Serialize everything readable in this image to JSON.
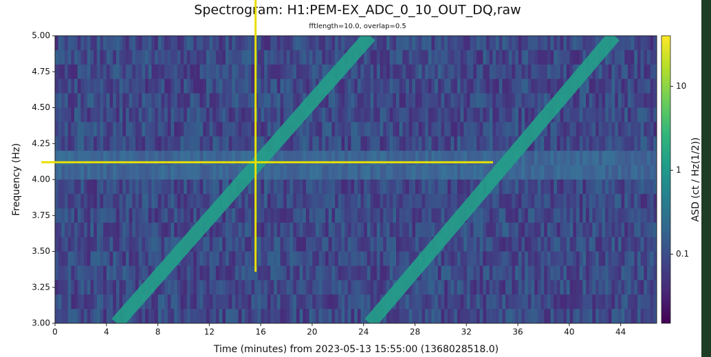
{
  "chart_data": {
    "type": "spectrogram",
    "title": "Spectrogram: H1:PEM-EX_ADC_0_10_OUT_DQ,raw",
    "subtitle": "fftlength=10.0, overlap=0.5",
    "xlabel": "Time (minutes) from 2023-05-13 15:55:00 (1368028518.0)",
    "ylabel": "Frequency (Hz)",
    "colorbar_label": "ASD (ct / Hz(1/2))",
    "xlim": [
      0,
      46.8
    ],
    "ylim": [
      3.0,
      5.0
    ],
    "xticks": [
      0,
      4,
      8,
      12,
      16,
      20,
      24,
      28,
      32,
      36,
      40,
      44
    ],
    "yticks": [
      {
        "value": 3.0,
        "label": "3.00"
      },
      {
        "value": 3.25,
        "label": "3.25"
      },
      {
        "value": 3.5,
        "label": "3.50"
      },
      {
        "value": 3.75,
        "label": "3.75"
      },
      {
        "value": 4.0,
        "label": "4.00"
      },
      {
        "value": 4.25,
        "label": "4.25"
      },
      {
        "value": 4.5,
        "label": "4.50"
      },
      {
        "value": 4.75,
        "label": "4.75"
      },
      {
        "value": 5.0,
        "label": "5.00"
      }
    ],
    "clim": [
      0.015,
      40
    ],
    "cticks": [
      0.1,
      1,
      10
    ],
    "color_scale": "log",
    "band": [
      4.0,
      4.2
    ],
    "tracks": [
      {
        "x": [
          4.8,
          24.5
        ],
        "y": [
          3.0,
          5.0
        ],
        "color": "#23a08a"
      },
      {
        "x": [
          24.5,
          43.5
        ],
        "y": [
          3.0,
          5.0
        ],
        "color": "#23a08a"
      }
    ],
    "crosshair": {
      "x": 15.6,
      "y": 4.12,
      "color": "#e8e000"
    }
  }
}
